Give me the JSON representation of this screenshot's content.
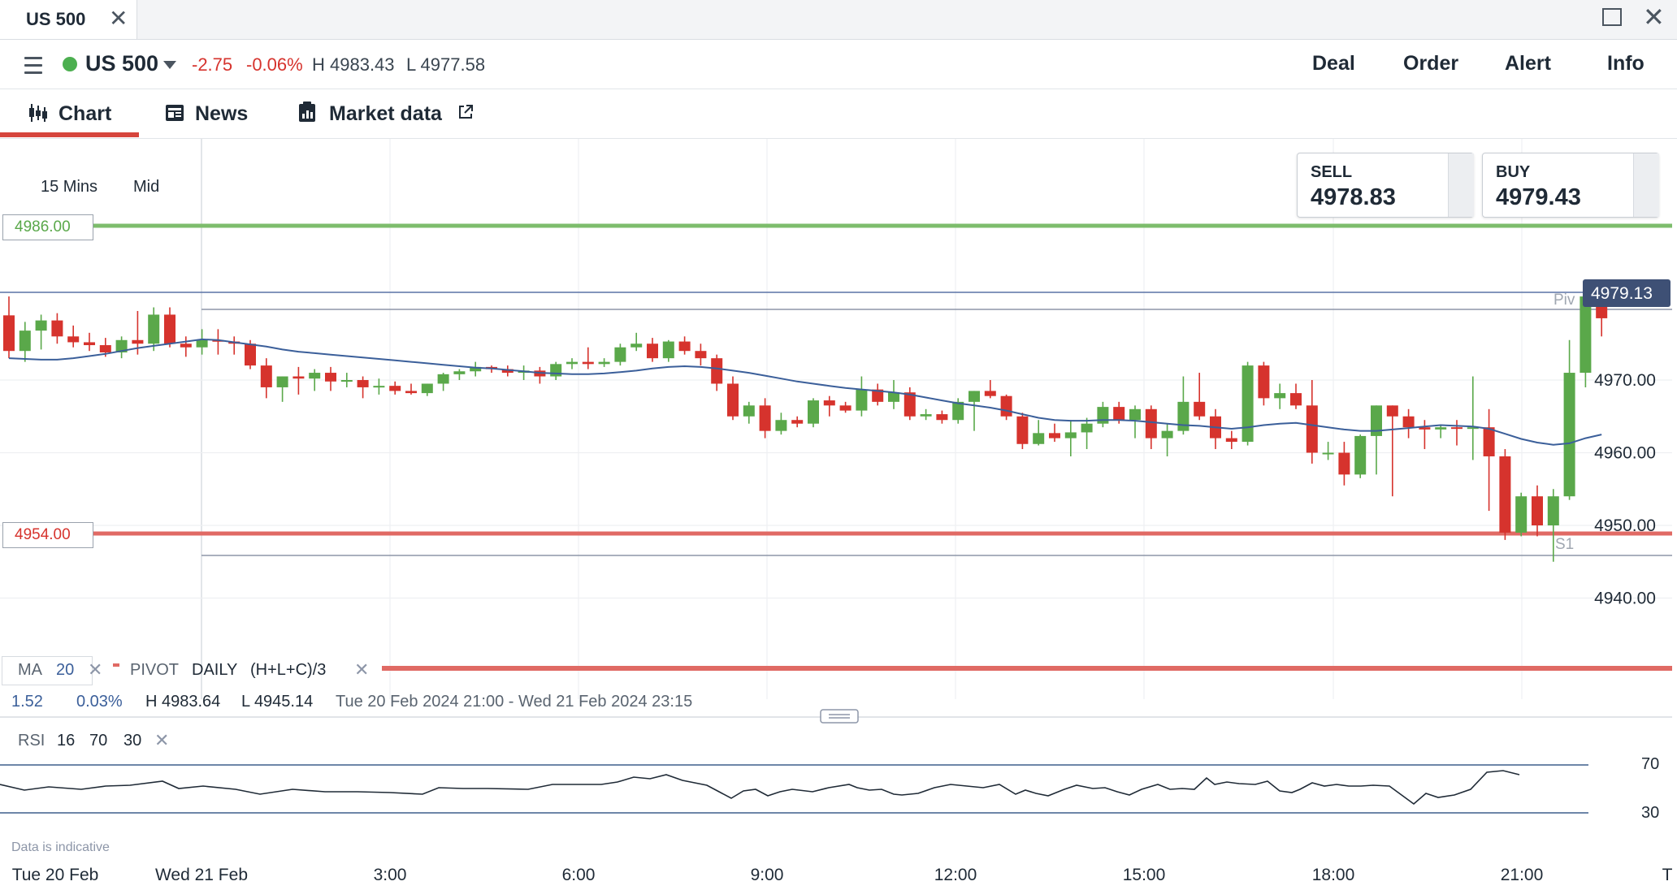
{
  "window_tab": {
    "title": "US 500"
  },
  "header": {
    "market_name": "US 500",
    "change": "-2.75",
    "change_pct": "-0.06%",
    "high": "H 4983.43",
    "low": "L 4977.58",
    "status_color": "#4caf50",
    "buttons": [
      "Deal",
      "Order",
      "Alert",
      "Info"
    ]
  },
  "tabs": [
    {
      "label": "Chart",
      "icon": "candlestick-icon",
      "active": true
    },
    {
      "label": "News",
      "icon": "newspaper-icon"
    },
    {
      "label": "Market data",
      "icon": "clipboard-icon",
      "external": "external-link-icon"
    }
  ],
  "chart_controls": {
    "interval": "15 Mins",
    "price_type": "Mid"
  },
  "trade": {
    "sell_label": "SELL",
    "sell_price": "4978.83",
    "buy_label": "BUY",
    "buy_price": "4979.43"
  },
  "levels": {
    "upper_alert": "4986.00",
    "lower_alert": "4954.00",
    "current_price": "4979.13",
    "pivot_label": "Piv",
    "support_label": "S1"
  },
  "indicators": {
    "ma_label": "MA",
    "ma_period": "20",
    "pivot_label": "PIVOT",
    "pivot_freq": "DAILY",
    "pivot_formula": "(H+L+C)/3"
  },
  "summary": {
    "change": "1.52",
    "change_pct": "0.03%",
    "high": "H 4983.64",
    "low": "L 4945.14",
    "range": "Tue 20 Feb 2024 21:00 - Wed 21 Feb 2024 23:15"
  },
  "rsi": {
    "label": "RSI",
    "period": "16",
    "upper": "70",
    "lower": "30"
  },
  "footer": {
    "disclaimer": "Data is indicative"
  },
  "colors": {
    "up": "#5aa84a",
    "down": "#d6332d",
    "ma": "#3b5f9a",
    "alert_upper": "#7dbd6c",
    "alert_lower": "#e06a64"
  },
  "chart_data": {
    "type": "candlestick",
    "y_ticks": [
      "4970.00",
      "4960.00",
      "4950.00",
      "4940.00"
    ],
    "x_ticks": [
      "Tue 20 Feb",
      "Wed 21 Feb",
      "3:00",
      "6:00",
      "9:00",
      "12:00",
      "15:00",
      "18:00",
      "21:00",
      "T"
    ],
    "ylim": [
      4938,
      4994
    ],
    "candles": [
      [
        4978.9,
        4981.5,
        4973.0,
        4974.0
      ],
      [
        4974.0,
        4978.0,
        4972.5,
        4976.8
      ],
      [
        4976.8,
        4979.0,
        4974.2,
        4978.2
      ],
      [
        4978.2,
        4979.2,
        4975.0,
        4976.0
      ],
      [
        4976.0,
        4977.5,
        4974.5,
        4975.2
      ],
      [
        4975.2,
        4976.5,
        4974.0,
        4974.8
      ],
      [
        4974.8,
        4975.8,
        4973.2,
        4973.8
      ],
      [
        4973.8,
        4976.0,
        4973.0,
        4975.5
      ],
      [
        4975.5,
        4979.5,
        4973.5,
        4975.0
      ],
      [
        4975.0,
        4980.0,
        4974.0,
        4979.0
      ],
      [
        4979.0,
        4980.0,
        4974.5,
        4975.0
      ],
      [
        4975.0,
        4976.0,
        4973.2,
        4974.5
      ],
      [
        4974.5,
        4977.0,
        4973.5,
        4975.5
      ],
      [
        4975.5,
        4977.0,
        4973.5,
        4975.3
      ],
      [
        4975.3,
        4976.0,
        4973.5,
        4975.0
      ],
      [
        4975.0,
        4975.5,
        4971.5,
        4972.0
      ],
      [
        4972.0,
        4973.0,
        4967.5,
        4969.0
      ],
      [
        4969.0,
        4970.5,
        4967.0,
        4970.5
      ],
      [
        4970.5,
        4971.8,
        4968.0,
        4970.2
      ],
      [
        4970.2,
        4971.5,
        4968.5,
        4971.0
      ],
      [
        4971.0,
        4971.8,
        4968.5,
        4969.8
      ],
      [
        4969.8,
        4971.0,
        4969.0,
        4970.0
      ],
      [
        4970.0,
        4970.5,
        4967.5,
        4969.0
      ],
      [
        4969.0,
        4970.2,
        4968.0,
        4969.2
      ],
      [
        4969.2,
        4969.8,
        4968.0,
        4968.5
      ],
      [
        4968.5,
        4969.5,
        4968.0,
        4968.2
      ],
      [
        4968.2,
        4969.5,
        4967.8,
        4969.5
      ],
      [
        4969.5,
        4971.0,
        4968.5,
        4970.8
      ],
      [
        4970.8,
        4971.5,
        4970.0,
        4971.2
      ],
      [
        4971.2,
        4972.5,
        4970.5,
        4971.8
      ],
      [
        4971.8,
        4972.0,
        4971.0,
        4971.5
      ],
      [
        4971.5,
        4972.0,
        4970.5,
        4971.0
      ],
      [
        4971.0,
        4972.0,
        4970.0,
        4971.3
      ],
      [
        4971.3,
        4971.8,
        4969.5,
        4970.5
      ],
      [
        4970.5,
        4972.5,
        4970.0,
        4972.2
      ],
      [
        4972.2,
        4973.0,
        4971.5,
        4972.5
      ],
      [
        4972.5,
        4974.5,
        4971.5,
        4972.2
      ],
      [
        4972.2,
        4973.0,
        4971.8,
        4972.5
      ],
      [
        4972.5,
        4975.0,
        4972.0,
        4974.5
      ],
      [
        4974.5,
        4976.5,
        4974.0,
        4975.0
      ],
      [
        4975.0,
        4975.8,
        4972.5,
        4973.0
      ],
      [
        4973.0,
        4975.5,
        4972.5,
        4975.3
      ],
      [
        4975.3,
        4976.0,
        4973.5,
        4974.0
      ],
      [
        4974.0,
        4975.0,
        4972.0,
        4973.0
      ],
      [
        4973.0,
        4973.5,
        4968.5,
        4969.5
      ],
      [
        4969.5,
        4970.5,
        4964.5,
        4965.0
      ],
      [
        4965.0,
        4967.0,
        4964.0,
        4966.5
      ],
      [
        4966.5,
        4967.5,
        4962.0,
        4963.0
      ],
      [
        4963.0,
        4965.5,
        4962.5,
        4964.5
      ],
      [
        4964.5,
        4965.0,
        4963.5,
        4964.0
      ],
      [
        4964.0,
        4967.5,
        4963.5,
        4967.2
      ],
      [
        4967.2,
        4967.8,
        4965.0,
        4966.5
      ],
      [
        4966.5,
        4967.0,
        4965.5,
        4965.8
      ],
      [
        4965.8,
        4970.5,
        4965.0,
        4968.7
      ],
      [
        4968.7,
        4969.5,
        4966.5,
        4967.0
      ],
      [
        4967.0,
        4970.0,
        4966.0,
        4968.3
      ],
      [
        4968.3,
        4969.0,
        4964.5,
        4965.0
      ],
      [
        4965.0,
        4966.0,
        4964.5,
        4965.3
      ],
      [
        4965.3,
        4965.8,
        4964.0,
        4964.5
      ],
      [
        4964.5,
        4967.5,
        4964.0,
        4967.0
      ],
      [
        4967.0,
        4968.5,
        4963.0,
        4968.5
      ],
      [
        4968.5,
        4970.0,
        4967.5,
        4967.8
      ],
      [
        4967.8,
        4968.0,
        4964.5,
        4965.0
      ],
      [
        4965.0,
        4965.5,
        4960.5,
        4961.2
      ],
      [
        4961.2,
        4964.5,
        4961.0,
        4962.7
      ],
      [
        4962.7,
        4964.0,
        4961.5,
        4962.0
      ],
      [
        4962.0,
        4964.5,
        4959.5,
        4962.8
      ],
      [
        4962.8,
        4964.8,
        4960.5,
        4964.0
      ],
      [
        4964.0,
        4967.0,
        4963.5,
        4966.3
      ],
      [
        4966.3,
        4967.0,
        4964.0,
        4964.5
      ],
      [
        4964.5,
        4966.5,
        4962.0,
        4966.0
      ],
      [
        4966.0,
        4966.5,
        4960.5,
        4962.0
      ],
      [
        4962.0,
        4964.0,
        4959.5,
        4963.0
      ],
      [
        4963.0,
        4970.5,
        4962.5,
        4967.0
      ],
      [
        4967.0,
        4971.0,
        4964.5,
        4965.0
      ],
      [
        4965.0,
        4966.0,
        4960.5,
        4962.0
      ],
      [
        4962.0,
        4963.0,
        4960.5,
        4961.5
      ],
      [
        4961.5,
        4972.5,
        4961.0,
        4972.0
      ],
      [
        4972.0,
        4972.5,
        4966.5,
        4967.5
      ],
      [
        4967.5,
        4969.5,
        4966.0,
        4968.2
      ],
      [
        4968.2,
        4969.5,
        4966.0,
        4966.5
      ],
      [
        4966.5,
        4970.0,
        4958.5,
        4960.0
      ],
      [
        4960.0,
        4961.5,
        4959.0,
        4960.0
      ],
      [
        4960.0,
        4961.5,
        4955.5,
        4957.0
      ],
      [
        4957.0,
        4962.5,
        4956.5,
        4962.3
      ],
      [
        4962.3,
        4966.5,
        4957.0,
        4966.5
      ],
      [
        4966.5,
        4966.5,
        4954.0,
        4965.0
      ],
      [
        4965.0,
        4966.0,
        4962.0,
        4963.5
      ],
      [
        4963.5,
        4964.5,
        4960.5,
        4963.2
      ],
      [
        4963.2,
        4963.8,
        4962.0,
        4963.5
      ],
      [
        4963.5,
        4964.5,
        4961.0,
        4963.3
      ],
      [
        4963.3,
        4970.5,
        4959.0,
        4963.5
      ],
      [
        4963.5,
        4966.0,
        4952.0,
        4959.5
      ],
      [
        4959.5,
        4960.5,
        4948.0,
        4949.0
      ],
      [
        4949.0,
        4954.5,
        4948.5,
        4954.0
      ],
      [
        4954.0,
        4955.5,
        4948.5,
        4950.0
      ],
      [
        4950.0,
        4955.0,
        4945.0,
        4954.0
      ],
      [
        4954.0,
        4975.5,
        4953.5,
        4971.0
      ],
      [
        4971.0,
        4983.5,
        4969.0,
        4981.5
      ],
      [
        4981.5,
        4982.5,
        4976.0,
        4978.5
      ]
    ],
    "ma20": [
      4973.0,
      4972.9,
      4972.8,
      4972.8,
      4973.0,
      4973.3,
      4973.6,
      4974.0,
      4974.4,
      4974.7,
      4975.0,
      4975.3,
      4975.6,
      4975.5,
      4975.2,
      4974.9,
      4974.6,
      4974.2,
      4973.9,
      4973.7,
      4973.5,
      4973.3,
      4973.1,
      4972.9,
      4972.7,
      4972.5,
      4972.3,
      4972.1,
      4971.9,
      4971.7,
      4971.6,
      4971.4,
      4971.2,
      4971.0,
      4970.9,
      4970.8,
      4970.8,
      4970.9,
      4971.1,
      4971.3,
      4971.6,
      4971.8,
      4971.9,
      4971.8,
      4971.6,
      4971.3,
      4971.0,
      4970.6,
      4970.2,
      4969.8,
      4969.5,
      4969.2,
      4968.9,
      4968.7,
      4968.5,
      4968.3,
      4968.0,
      4967.6,
      4967.2,
      4966.8,
      4966.5,
      4966.2,
      4965.8,
      4965.3,
      4964.8,
      4964.5,
      4964.4,
      4964.4,
      4964.5,
      4964.5,
      4964.4,
      4964.2,
      4964.0,
      4963.8,
      4963.7,
      4963.5,
      4963.3,
      4963.5,
      4963.8,
      4964.0,
      4964.1,
      4963.8,
      4963.5,
      4963.2,
      4963.0,
      4963.0,
      4963.2,
      4963.4,
      4963.6,
      4963.8,
      4963.7,
      4963.6,
      4963.3,
      4962.6,
      4961.9,
      4961.4,
      4961.1,
      4961.3,
      4962.0,
      4962.5
    ]
  }
}
